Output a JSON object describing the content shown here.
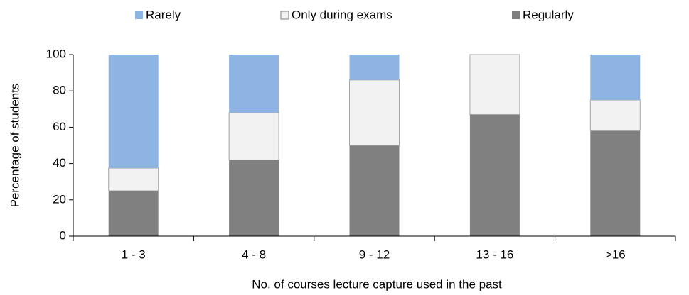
{
  "chart_data": {
    "type": "stacked_bar",
    "categories": [
      "1 - 3",
      "4 - 8",
      "9 - 12",
      "13 - 16",
      ">16"
    ],
    "series": [
      {
        "name": "Rarely",
        "color": "#8eb4e3",
        "values": [
          62.5,
          32,
          14,
          0,
          25
        ]
      },
      {
        "name": "Only during exams",
        "color": "#f2f2f2",
        "values": [
          12.5,
          26,
          36,
          33,
          17
        ]
      },
      {
        "name": "Regularly",
        "color": "#808080",
        "values": [
          25,
          42,
          50,
          67,
          58
        ]
      }
    ],
    "xlabel": "No. of courses lecture capture used in the past",
    "ylabel": "Percentage of students",
    "ylim": [
      0,
      100
    ],
    "yticks": [
      0,
      20,
      40,
      60,
      80,
      100
    ],
    "grid": false,
    "legend": "top"
  }
}
